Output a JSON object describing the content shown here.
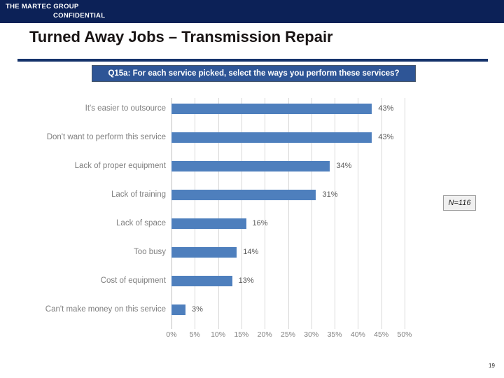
{
  "header": {
    "company": "THE MARTEC GROUP",
    "confidential": "CONFIDENTIAL"
  },
  "title": "Turned Away Jobs – Transmission Repair",
  "question": "Q15a: For each service picked, select the ways you perform these services?",
  "sample_size": "N=116",
  "page_number": "19",
  "colors": {
    "header_navy": "#0c2157",
    "divider_navy": "#15336b",
    "banner_blue": "#2e5596",
    "bar_blue": "#4e7fbd",
    "category_gray": "#7f7f7f",
    "value_gray": "#595959",
    "gridline_gray": "#d9d9d9"
  },
  "chart_data": {
    "type": "bar",
    "orientation": "horizontal",
    "title": "",
    "xlabel": "",
    "ylabel": "",
    "categories": [
      "It's easier to outsource",
      "Don't want to perform this service",
      "Lack of proper equipment",
      "Lack of training",
      "Lack of space",
      "Too busy",
      "Cost of equipment",
      "Can't make money on this service"
    ],
    "values": [
      43,
      43,
      34,
      31,
      16,
      14,
      13,
      3
    ],
    "value_labels": [
      "43%",
      "43%",
      "34%",
      "31%",
      "16%",
      "14%",
      "13%",
      "3%"
    ],
    "xlim": [
      0,
      50
    ],
    "tick_step": 5,
    "tick_labels": [
      "0%",
      "5%",
      "10%",
      "15%",
      "20%",
      "25%",
      "30%",
      "35%",
      "40%",
      "45%",
      "50%"
    ],
    "grid": true,
    "legend": false
  }
}
